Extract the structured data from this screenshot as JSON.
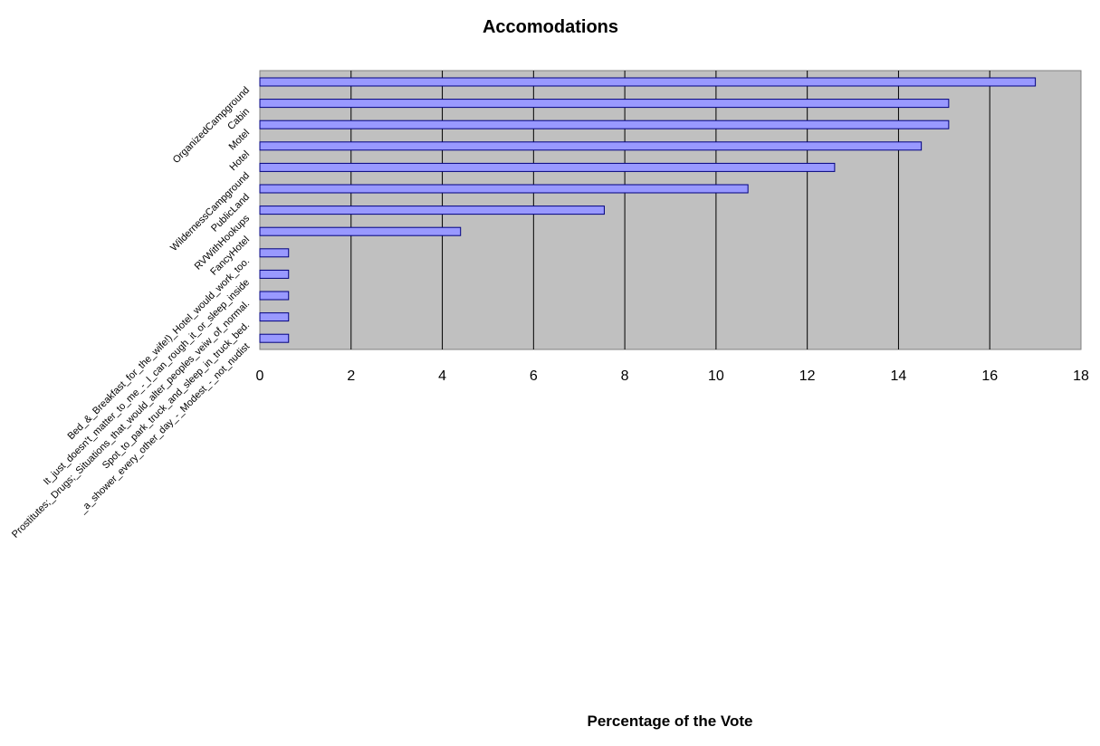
{
  "chart_data": {
    "type": "bar",
    "orientation": "horizontal",
    "title": "Accomodations",
    "xlabel": "Percentage of the Vote",
    "ylabel": "",
    "xlim": [
      0,
      18
    ],
    "xticks": [
      0,
      2,
      4,
      6,
      8,
      10,
      12,
      14,
      16,
      18
    ],
    "grid": true,
    "categories": [
      "OrganizedCampground",
      "Cabin",
      "Motel",
      "Hotel",
      "WildernessCampground",
      "PublicLand",
      "RVWithHookups",
      "FancyHotel",
      "Bed_&_Breakfast_for_the_wife!)_Hotel_would_work_too.",
      "It_just_doesn't_matter_to_me_-_I_can_rough_it_or_sleep_inside",
      "Prostitutes;_Drugs;_Situations_that_would_alter_peoples_veiw_of_normal.",
      "Spot_to_park_truck_and_sleep_in_truck_bed.",
      "_a_shower_every_other_day_-_Modest_-_not_nudist"
    ],
    "values": [
      17.0,
      15.1,
      15.1,
      14.5,
      12.6,
      10.7,
      7.55,
      4.4,
      0.63,
      0.63,
      0.63,
      0.63,
      0.63
    ],
    "colors": {
      "bar_fill": "#9999ff",
      "bar_stroke": "#000080",
      "plot_background": "#c0c0c0",
      "gridline": "#000000"
    }
  }
}
